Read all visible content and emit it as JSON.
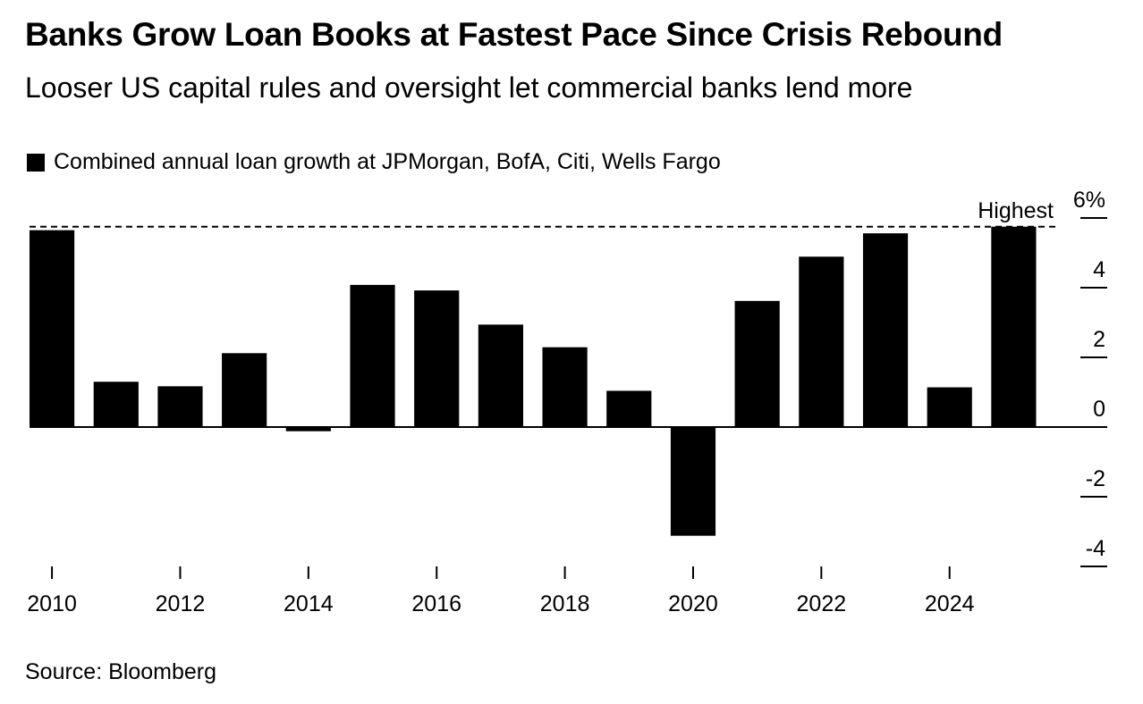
{
  "title": "Banks Grow Loan Books at Fastest Pace Since Crisis Rebound",
  "subtitle": "Looser US capital rules and oversight let commercial banks lend more",
  "legend": {
    "label": "Combined annual loan growth at JPMorgan, BofA, Citi, Wells Fargo"
  },
  "source": "Source: Bloomberg",
  "chart_data": {
    "type": "bar",
    "title": "Banks Grow Loan Books at Fastest Pace Since Crisis Rebound",
    "subtitle": "Looser US capital rules and oversight let commercial banks lend more",
    "series": [
      {
        "name": "Combined annual loan growth at JPMorgan, BofA, Citi, Wells Fargo",
        "color": "#000000",
        "values": [
          5.65,
          1.3,
          1.17,
          2.12,
          -0.12,
          4.08,
          3.92,
          2.94,
          2.29,
          1.04,
          -3.12,
          3.62,
          4.89,
          5.56,
          1.14,
          5.75
        ]
      }
    ],
    "categories": [
      "2010",
      "2011",
      "2012",
      "2013",
      "2014",
      "2015",
      "2016",
      "2017",
      "2018",
      "2019",
      "2020",
      "2021",
      "2022",
      "2023",
      "2024",
      "2025"
    ],
    "x_tick_labels": [
      "2010",
      "2012",
      "2014",
      "2016",
      "2018",
      "2020",
      "2022",
      "2024"
    ],
    "y_ticks": [
      6,
      4,
      2,
      0,
      -2,
      -4
    ],
    "y_tick_labels": [
      "6%",
      "4",
      "2",
      "0",
      "-2",
      "-4"
    ],
    "ylim": [
      -4,
      6
    ],
    "xlabel": "",
    "ylabel": "",
    "reference_line": {
      "label": "Highest",
      "value": 5.75,
      "style": "dashed"
    },
    "axis_position": "right",
    "grid": false
  }
}
